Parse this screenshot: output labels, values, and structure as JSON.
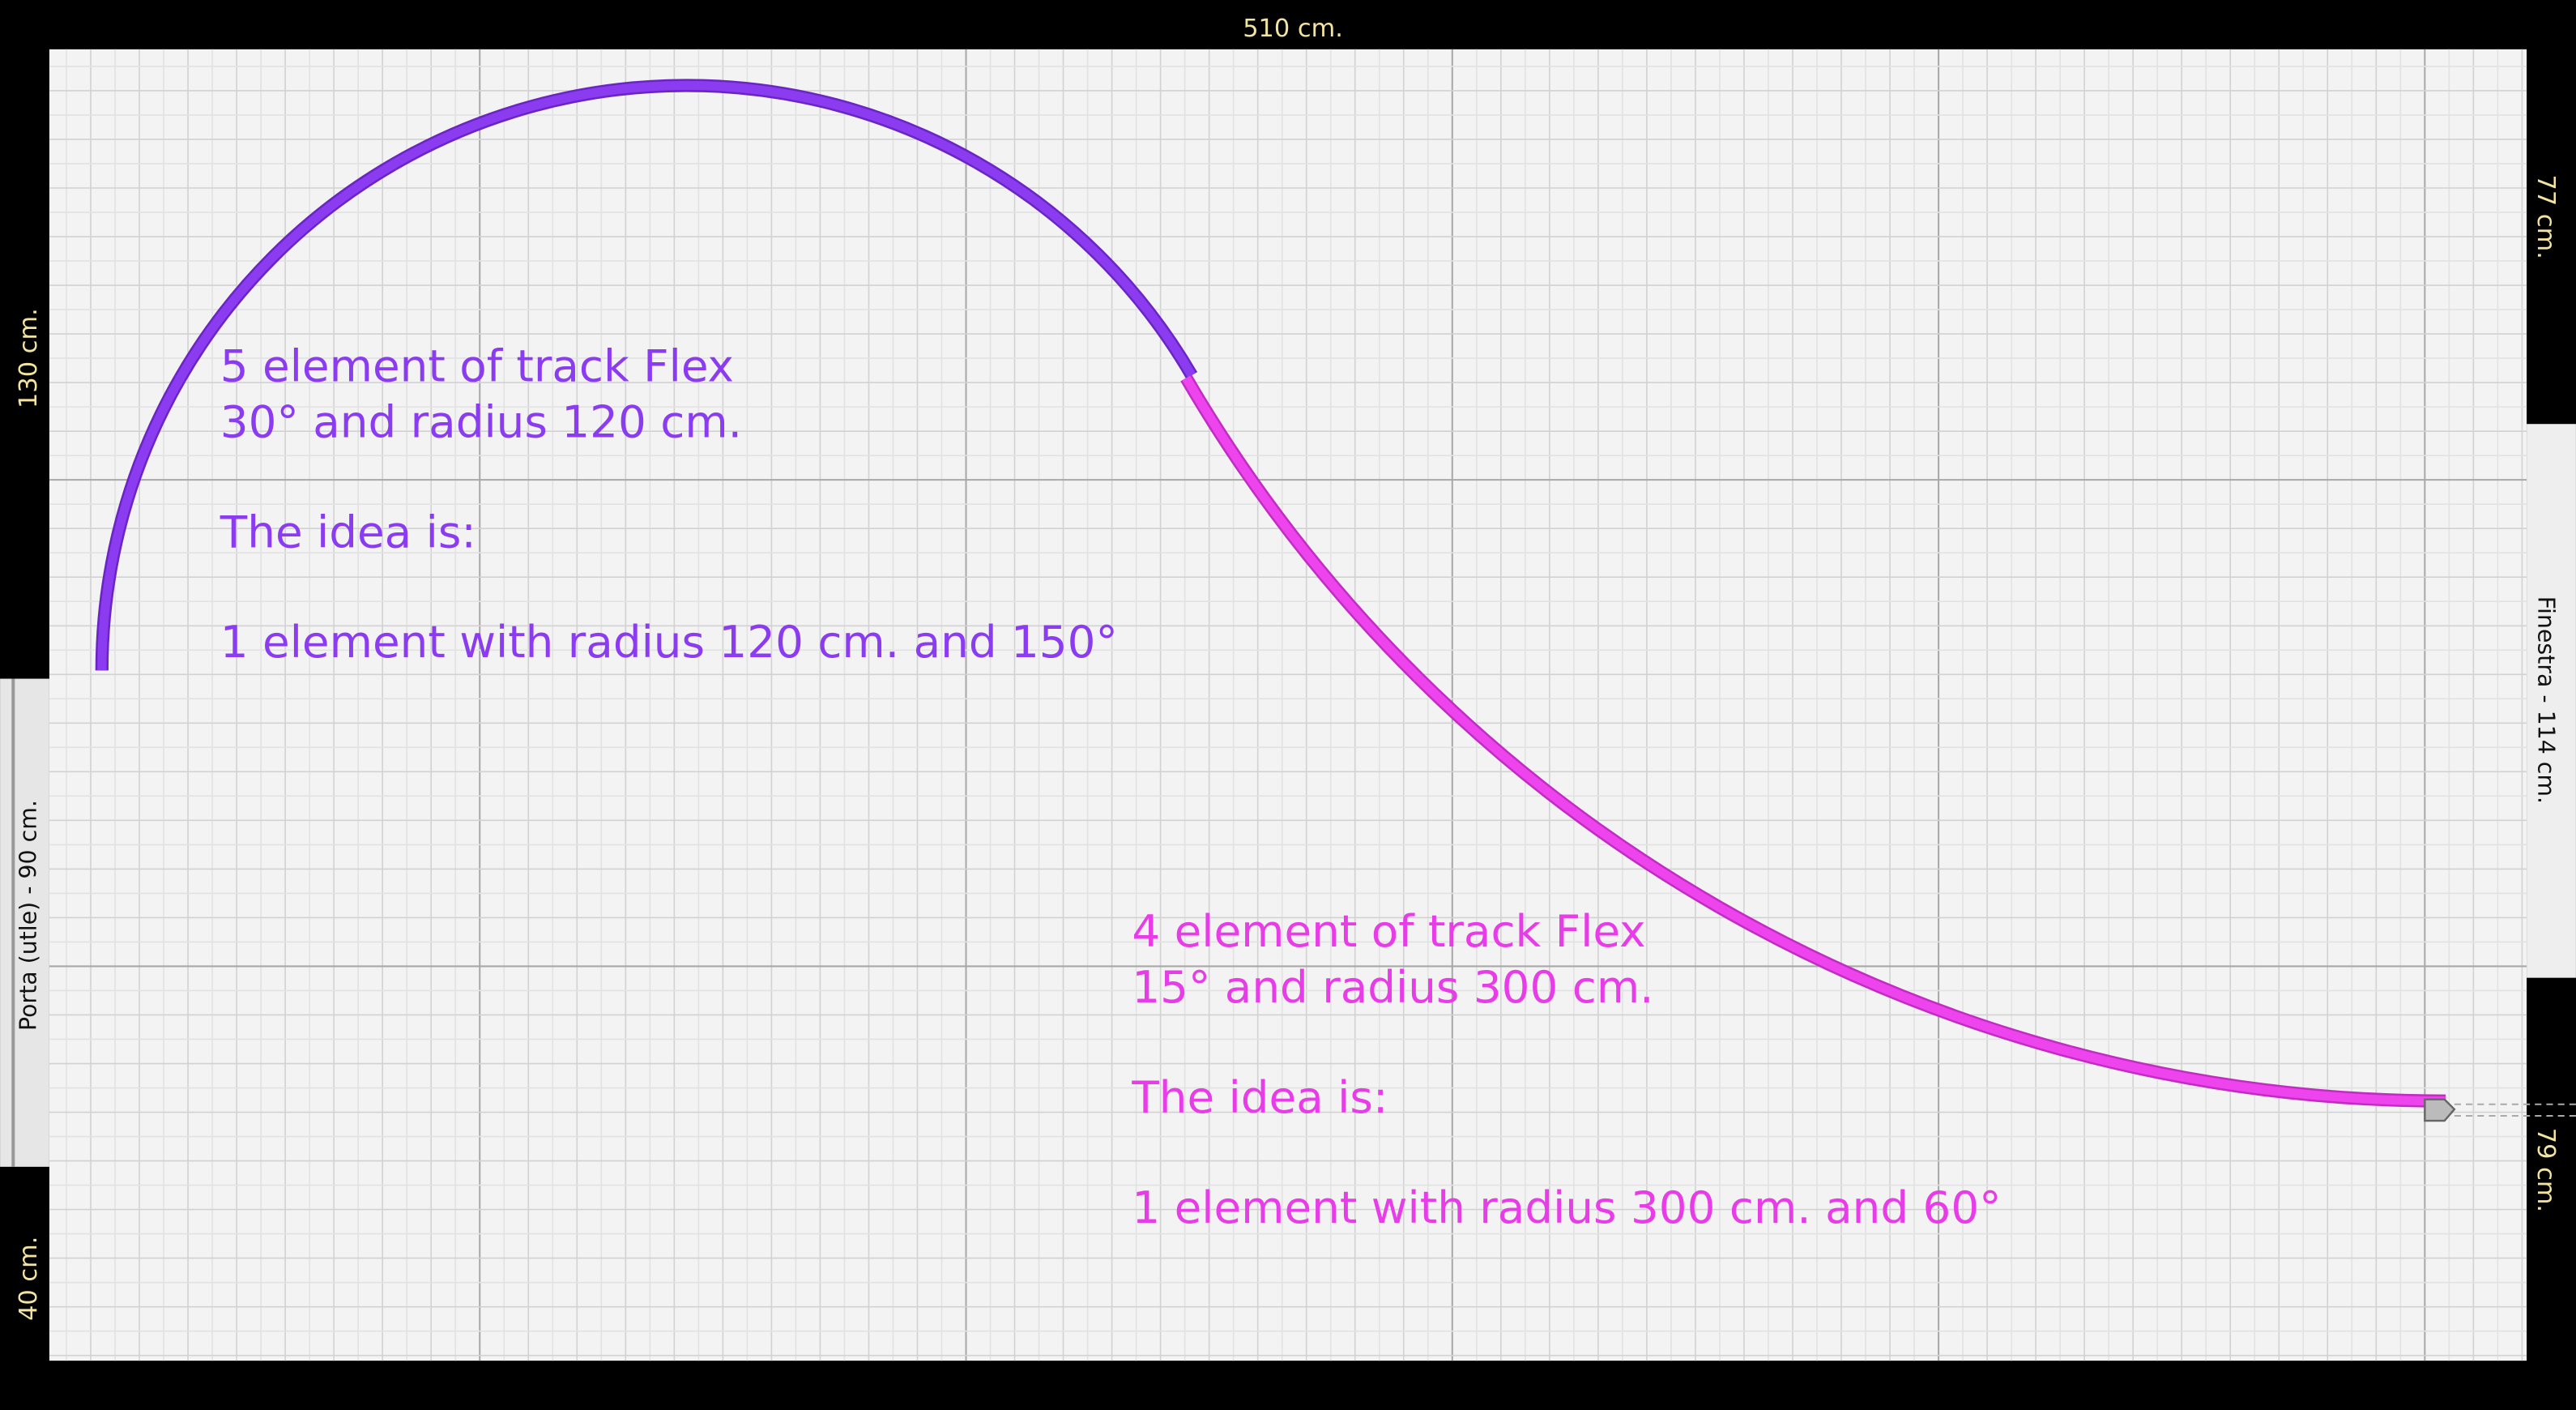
{
  "dimensions": {
    "top": "510 cm.",
    "left_top": "130 cm.",
    "left_door": "Porta (utle) - 90 cm.",
    "left_bottom": "40 cm.",
    "right_top": "77 cm.",
    "right_window": "Finestra - 114 cm.",
    "right_bottom": "79 cm."
  },
  "notes": [
    {
      "lines": [
        "5 element of track Flex",
        "30° and radius 120 cm.",
        "The idea is:",
        "1 element with radius 120 cm. and 150°"
      ]
    },
    {
      "lines": [
        "4 element of track Flex",
        "15° and radius 300 cm.",
        "The idea is:",
        "1 element with radius 300 cm. and 60°"
      ]
    }
  ]
}
